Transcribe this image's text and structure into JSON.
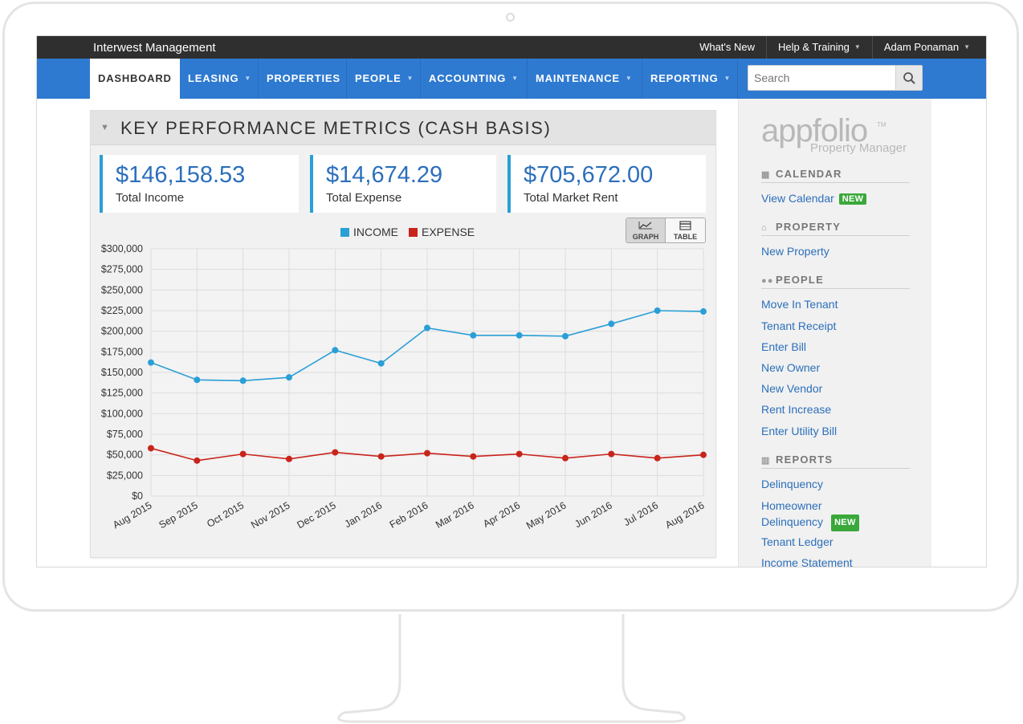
{
  "topbar": {
    "company": "Interwest Management",
    "links": [
      {
        "label": "What's New",
        "dropdown": false
      },
      {
        "label": "Help & Training",
        "dropdown": true
      },
      {
        "label": "Adam Ponaman",
        "dropdown": true
      }
    ]
  },
  "nav": {
    "items": [
      {
        "label": "DASHBOARD",
        "active": true,
        "dropdown": false
      },
      {
        "label": "LEASING",
        "active": false,
        "dropdown": true
      },
      {
        "label": "PROPERTIES",
        "active": false,
        "dropdown": false
      },
      {
        "label": "PEOPLE",
        "active": false,
        "dropdown": true
      },
      {
        "label": "ACCOUNTING",
        "active": false,
        "dropdown": true
      },
      {
        "label": "MAINTENANCE",
        "active": false,
        "dropdown": true
      },
      {
        "label": "REPORTING",
        "active": false,
        "dropdown": true
      }
    ],
    "search_placeholder": "Search",
    "search_icon": "search-icon"
  },
  "kpi": {
    "title": "KEY PERFORMANCE METRICS (CASH BASIS)",
    "metrics": [
      {
        "value": "$146,158.53",
        "label": "Total Income"
      },
      {
        "value": "$14,674.29",
        "label": "Total Expense"
      },
      {
        "value": "$705,672.00",
        "label": "Total Market Rent"
      }
    ],
    "view_buttons": [
      {
        "label": "GRAPH",
        "icon": "line-chart-icon",
        "selected": true
      },
      {
        "label": "TABLE",
        "icon": "table-icon",
        "selected": false
      }
    ]
  },
  "colors": {
    "income": "#2a9fd6",
    "expense": "#c9241b",
    "brand_blue": "#2f7ad1",
    "link": "#2c6fbb",
    "badge": "#3aa83a"
  },
  "chart_data": {
    "type": "line",
    "categories": [
      "Aug 2015",
      "Sep 2015",
      "Oct 2015",
      "Nov 2015",
      "Dec 2015",
      "Jan 2016",
      "Feb 2016",
      "Mar 2016",
      "Apr 2016",
      "May 2016",
      "Jun 2016",
      "Jul 2016",
      "Aug 2016"
    ],
    "series": [
      {
        "name": "INCOME",
        "color": "#2a9fd6",
        "values": [
          162000,
          141000,
          140000,
          144000,
          177000,
          161000,
          204000,
          195000,
          195000,
          194000,
          209000,
          225000,
          224000
        ]
      },
      {
        "name": "EXPENSE",
        "color": "#c9241b",
        "values": [
          58000,
          43000,
          51000,
          45000,
          53000,
          48000,
          52000,
          48000,
          51000,
          46000,
          51000,
          46000,
          50000
        ]
      }
    ],
    "y_ticks": [
      "$0",
      "$25,000",
      "$50,000",
      "$75,000",
      "$100,000",
      "$125,000",
      "$150,000",
      "$175,000",
      "$200,000",
      "$225,000",
      "$250,000",
      "$275,000",
      "$300,000"
    ],
    "ylim": [
      0,
      300000
    ],
    "grid": true,
    "legend": "top-center"
  },
  "sidebar": {
    "logo": {
      "word": "appfolio",
      "tm": "TM",
      "sub": "Property Manager"
    },
    "sections": [
      {
        "title": "CALENDAR",
        "icon": "calendar-icon",
        "links": [
          {
            "label": "View Calendar",
            "badge": "NEW"
          }
        ]
      },
      {
        "title": "PROPERTY",
        "icon": "home-icon",
        "links": [
          {
            "label": "New Property"
          }
        ]
      },
      {
        "title": "PEOPLE",
        "icon": "people-icon",
        "links": [
          {
            "label": "Move In Tenant"
          },
          {
            "label": "Tenant Receipt"
          },
          {
            "label": "Enter Bill"
          },
          {
            "label": "New Owner"
          },
          {
            "label": "New Vendor"
          },
          {
            "label": "Rent Increase"
          },
          {
            "label": "Enter Utility Bill"
          }
        ]
      },
      {
        "title": "REPORTS",
        "icon": "bar-chart-icon",
        "links": [
          {
            "label": "Delinquency"
          },
          {
            "label": "Homeowner",
            "label2": "Delinquency",
            "badge": "NEW"
          },
          {
            "label": "Tenant Ledger"
          },
          {
            "label": "Income Statement"
          }
        ]
      }
    ]
  }
}
